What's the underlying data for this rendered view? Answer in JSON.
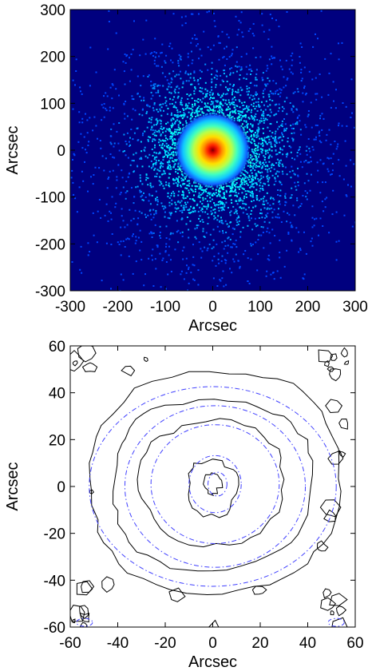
{
  "chart_data": [
    {
      "type": "heatmap",
      "title": "",
      "xlabel": "Arcsec",
      "ylabel": "Arcsec",
      "xlim": [
        -300,
        300
      ],
      "ylim": [
        -300,
        300
      ],
      "xticks": [
        "-300",
        "-200",
        "-100",
        "0",
        "100",
        "200",
        "300"
      ],
      "yticks": [
        "-300",
        "-200",
        "-100",
        "0",
        "100",
        "200",
        "300"
      ],
      "colormap": [
        "#00007f",
        "#0000ff",
        "#00a0ff",
        "#00ffff",
        "#80ff80",
        "#ffff00",
        "#ff8000",
        "#ff0000",
        "#800000"
      ],
      "background_color": "#00007f",
      "peak_center": [
        0,
        0
      ],
      "core_radius_arcsec": 25,
      "halo_extent_arcsec": 220,
      "grid": false
    },
    {
      "type": "contour",
      "title": "",
      "xlabel": "Arcsec",
      "ylabel": "Arcsec",
      "xlim": [
        -60,
        60
      ],
      "ylim": [
        -60,
        60
      ],
      "xticks": [
        "-60",
        "-40",
        "-20",
        "0",
        "20",
        "40",
        "60"
      ],
      "yticks": [
        "-60",
        "-40",
        "-20",
        "0",
        "20",
        "40",
        "60"
      ],
      "grid": false,
      "series": [
        {
          "style": "solid",
          "color": "#000000",
          "contours": [
            {
              "level": 1,
              "points": [
                [
                  -3,
                  5
                ],
                [
                  2,
                  5
                ],
                [
                  4,
                  1
                ],
                [
                  2,
                  -3
                ],
                [
                  -2,
                  -3
                ],
                [
                  -4,
                  1
                ]
              ]
            },
            {
              "level": 2,
              "points": [
                [
                  -8,
                  10
                ],
                [
                  4,
                  11
                ],
                [
                  10,
                  6
                ],
                [
                  10,
                  -3
                ],
                [
                  6,
                  -12
                ],
                [
                  -4,
                  -13
                ],
                [
                  -10,
                  -6
                ],
                [
                  -10,
                  4
                ]
              ]
            },
            {
              "level": 3,
              "points": [
                [
                  -13,
                  26
                ],
                [
                  3,
                  29
                ],
                [
                  18,
                  25
                ],
                [
                  28,
                  16
                ],
                [
                  30,
                  3
                ],
                [
                  28,
                  -11
                ],
                [
                  20,
                  -20
                ],
                [
                  7,
                  -25
                ],
                [
                  -10,
                  -25
                ],
                [
                  -22,
                  -18
                ],
                [
                  -30,
                  -5
                ],
                [
                  -31,
                  8
                ],
                [
                  -26,
                  19
                ]
              ]
            },
            {
              "level": 4,
              "points": [
                [
                  -26,
                  33
                ],
                [
                  -6,
                  37
                ],
                [
                  14,
                  36
                ],
                [
                  30,
                  30
                ],
                [
                  40,
                  20
                ],
                [
                  42,
                  5
                ],
                [
                  40,
                  -12
                ],
                [
                  33,
                  -24
                ],
                [
                  18,
                  -32
                ],
                [
                  0,
                  -36
                ],
                [
                  -18,
                  -35
                ],
                [
                  -32,
                  -28
                ],
                [
                  -40,
                  -16
                ],
                [
                  -42,
                  -2
                ],
                [
                  -40,
                  14
                ],
                [
                  -35,
                  25
                ]
              ]
            },
            {
              "level": 5,
              "points": [
                [
                  -33,
                  42
                ],
                [
                  -10,
                  49
                ],
                [
                  14,
                  48
                ],
                [
                  34,
                  44
                ],
                [
                  46,
                  32
                ],
                [
                  53,
                  16
                ],
                [
                  54,
                  -2
                ],
                [
                  50,
                  -20
                ],
                [
                  40,
                  -33
                ],
                [
                  24,
                  -42
                ],
                [
                  4,
                  -46
                ],
                [
                  -18,
                  -44
                ],
                [
                  -36,
                  -37
                ],
                [
                  -46,
                  -24
                ],
                [
                  -51,
                  -8
                ],
                [
                  -52,
                  10
                ],
                [
                  -47,
                  26
                ]
              ]
            }
          ]
        },
        {
          "style": "dash-dot",
          "color": "#4040ff",
          "contours": [
            {
              "level": 1,
              "center": [
                2,
                1
              ],
              "rx": 4,
              "ry": 5
            },
            {
              "level": 2,
              "center": [
                1,
                1
              ],
              "rx": 11,
              "ry": 12
            },
            {
              "level": 3,
              "center": [
                1,
                1
              ],
              "rx": 27,
              "ry": 25
            },
            {
              "level": 4,
              "center": [
                1,
                0
              ],
              "rx": 38,
              "ry": 34
            },
            {
              "level": 5,
              "center": [
                0,
                0
              ],
              "rx": 52,
              "ry": 42
            }
          ]
        }
      ]
    }
  ]
}
